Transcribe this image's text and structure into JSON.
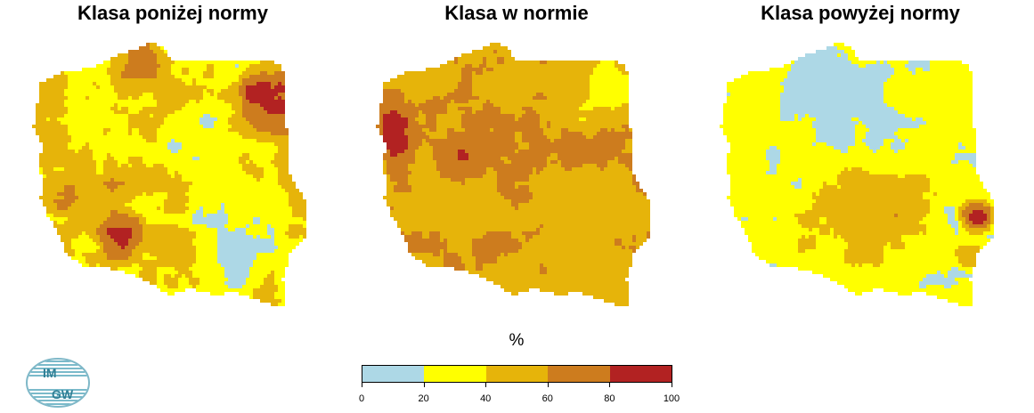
{
  "maps": [
    {
      "title": "Klasa poniżej normy",
      "scheme": "below"
    },
    {
      "title": "Klasa w normie",
      "scheme": "normal"
    },
    {
      "title": "Klasa powyżej normy",
      "scheme": "above"
    }
  ],
  "legend": {
    "unit": "%",
    "classes": [
      {
        "from": 0,
        "to": 20,
        "color": "#add8e6"
      },
      {
        "from": 20,
        "to": 40,
        "color": "#ffff00"
      },
      {
        "from": 40,
        "to": 60,
        "color": "#e6b40a"
      },
      {
        "from": 60,
        "to": 80,
        "color": "#cd7c1e"
      },
      {
        "from": 80,
        "to": 100,
        "color": "#b22222"
      }
    ],
    "ticks": [
      "0",
      "20",
      "40",
      "60",
      "80",
      "100"
    ]
  },
  "logo": {
    "text_top": "IM",
    "text_bottom": "GW"
  }
}
